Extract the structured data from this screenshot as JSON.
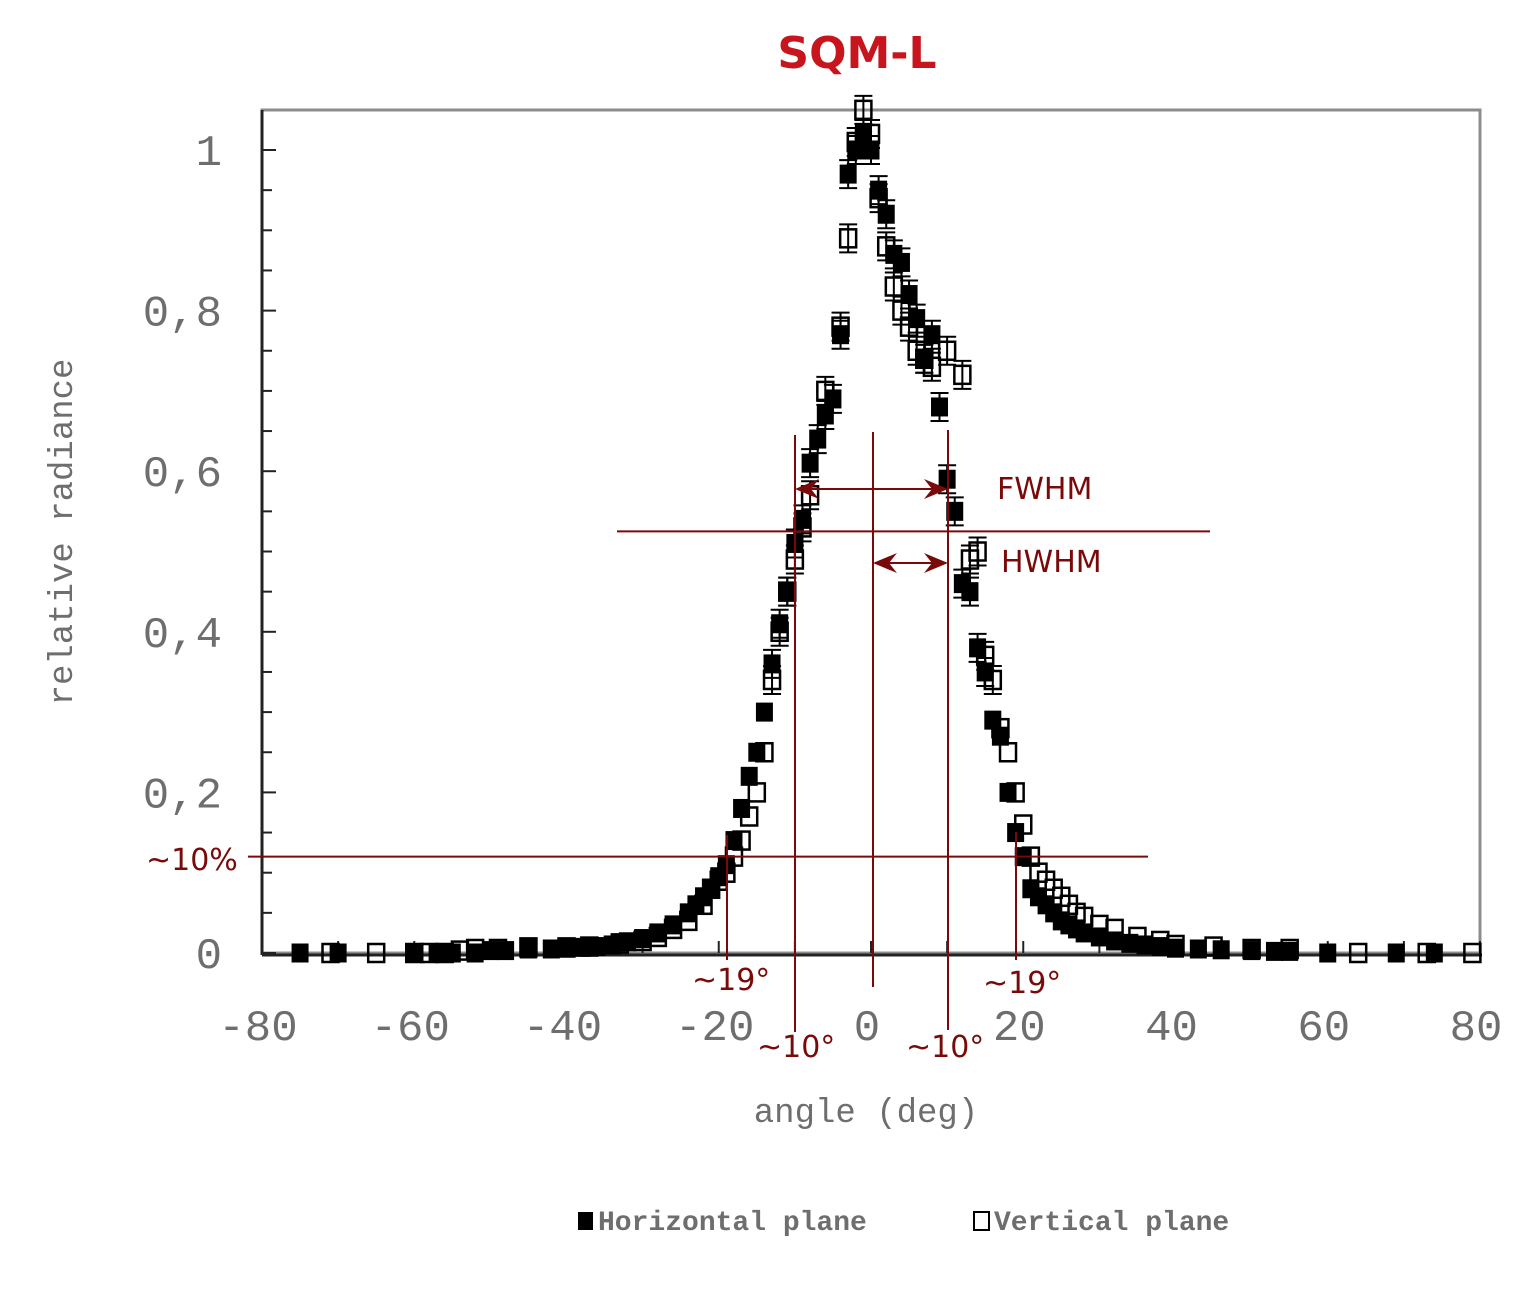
{
  "chart_data": {
    "type": "scatter",
    "title": "SQM-L",
    "xlabel": "angle (deg)",
    "ylabel": "relative radiance",
    "xlim": [
      -80,
      80
    ],
    "ylim": [
      0,
      1.05
    ],
    "xticks": [
      -80,
      -60,
      -40,
      -20,
      0,
      20,
      40,
      60,
      80
    ],
    "xtick_labels": [
      "-80",
      "-60",
      "-40",
      "-20",
      "0",
      "20",
      "40",
      "60",
      "80"
    ],
    "yticks": [
      0,
      0.2,
      0.4,
      0.6,
      0.8,
      1
    ],
    "ytick_labels": [
      "0",
      "0,2",
      "0,4",
      "0,6",
      "0,8",
      "1"
    ],
    "grid": false,
    "legend_position": "bottom",
    "series": [
      {
        "name": "Horizontal plane",
        "marker": "filled-square",
        "color": "#000000",
        "x": [
          -75,
          -70,
          -60,
          -57,
          -55,
          -52,
          -50,
          -48,
          -45,
          -42,
          -40,
          -38,
          -36,
          -34,
          -32,
          -30,
          -28,
          -26,
          -24,
          -23,
          -22,
          -21,
          -20,
          -19,
          -18,
          -17,
          -16,
          -15,
          -14,
          -13,
          -12,
          -11,
          -10,
          -9,
          -8,
          -7,
          -6,
          -5,
          -4,
          -3,
          -2,
          -1,
          0,
          1,
          2,
          3,
          4,
          5,
          6,
          7,
          8,
          9,
          10,
          11,
          12,
          13,
          14,
          15,
          16,
          17,
          18,
          19,
          20,
          21,
          22,
          23,
          24,
          25,
          26,
          27,
          28,
          30,
          32,
          34,
          36,
          38,
          40,
          43,
          46,
          50,
          53,
          55,
          60,
          69,
          74
        ],
        "y": [
          0.0,
          0.0,
          0.0,
          0.0,
          0.0,
          0.0,
          0.003,
          0.003,
          0.005,
          0.005,
          0.006,
          0.007,
          0.008,
          0.01,
          0.014,
          0.018,
          0.025,
          0.035,
          0.05,
          0.06,
          0.07,
          0.08,
          0.095,
          0.11,
          0.14,
          0.18,
          0.22,
          0.25,
          0.3,
          0.36,
          0.41,
          0.45,
          0.51,
          0.54,
          0.61,
          0.64,
          0.67,
          0.69,
          0.77,
          0.97,
          1.0,
          1.02,
          1.0,
          0.95,
          0.92,
          0.87,
          0.86,
          0.82,
          0.79,
          0.74,
          0.77,
          0.68,
          0.59,
          0.55,
          0.46,
          0.45,
          0.38,
          0.35,
          0.29,
          0.27,
          0.2,
          0.15,
          0.12,
          0.08,
          0.07,
          0.06,
          0.05,
          0.04,
          0.035,
          0.03,
          0.025,
          0.02,
          0.015,
          0.012,
          0.01,
          0.008,
          0.006,
          0.005,
          0.004,
          0.003,
          0.002,
          0.002,
          0.0,
          0.0,
          0.0
        ]
      },
      {
        "name": "Vertical plane",
        "marker": "open-square",
        "color": "#000000",
        "x": [
          -71,
          -65,
          -60,
          -58,
          -56,
          -54,
          -52,
          -49,
          -45,
          -40,
          -37,
          -33,
          -30,
          -28,
          -26,
          -24,
          -22,
          -21,
          -20,
          -19,
          -18,
          -17,
          -16,
          -15,
          -14,
          -13,
          -12,
          -11,
          -10,
          -9,
          -8,
          -6,
          -4,
          -3,
          -2,
          -1,
          0,
          1,
          2,
          3,
          4,
          5,
          6,
          7,
          8,
          10,
          12,
          13,
          14,
          15,
          16,
          17,
          18,
          19,
          20,
          21,
          22,
          23,
          24,
          25,
          26,
          27,
          28,
          30,
          32,
          35,
          38,
          40,
          45,
          50,
          55,
          64,
          73,
          79
        ],
        "y": [
          0.0,
          0.0,
          0.0,
          0.0,
          0.0,
          0.003,
          0.005,
          0.005,
          0.007,
          0.007,
          0.008,
          0.012,
          0.015,
          0.02,
          0.03,
          0.04,
          0.06,
          0.08,
          0.09,
          0.1,
          0.12,
          0.14,
          0.17,
          0.2,
          0.25,
          0.34,
          0.4,
          0.45,
          0.49,
          0.53,
          0.57,
          0.7,
          0.78,
          0.89,
          1.01,
          1.05,
          1.02,
          0.94,
          0.88,
          0.83,
          0.8,
          0.78,
          0.75,
          0.74,
          0.73,
          0.75,
          0.72,
          0.49,
          0.5,
          0.37,
          0.34,
          0.28,
          0.25,
          0.2,
          0.16,
          0.12,
          0.1,
          0.09,
          0.08,
          0.07,
          0.06,
          0.05,
          0.045,
          0.035,
          0.03,
          0.02,
          0.015,
          0.01,
          0.008,
          0.005,
          0.005,
          0.0,
          0.0,
          0.0
        ]
      }
    ],
    "annotations": {
      "fwhm_label": "FWHM",
      "hwhm_label": "HWHM",
      "half_max_level": 0.525,
      "ten_pct_level": 0.12,
      "ten_pct_label": "~10%",
      "fwhm_left_x": -10,
      "fwhm_right_x": 10,
      "center_x": 0,
      "tenpct_left_x": -19,
      "tenpct_right_x": 19,
      "left_19_label": "~19°",
      "right_19_label": "~19°",
      "left_10_label": "~10°",
      "right_10_label": "~10°",
      "color": "#7a0a0a"
    }
  }
}
